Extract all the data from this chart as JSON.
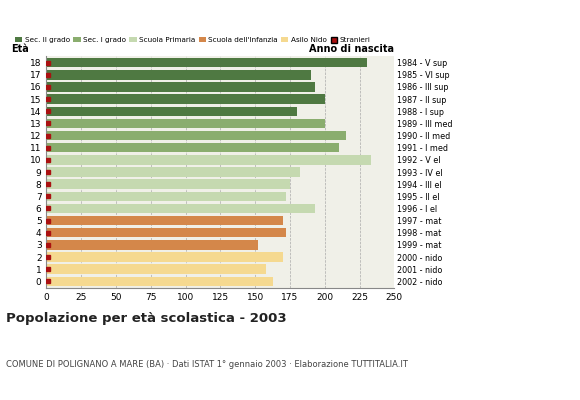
{
  "ages": [
    18,
    17,
    16,
    15,
    14,
    13,
    12,
    11,
    10,
    9,
    8,
    7,
    6,
    5,
    4,
    3,
    2,
    1,
    0
  ],
  "values": [
    230,
    190,
    193,
    200,
    180,
    200,
    215,
    210,
    233,
    182,
    175,
    172,
    193,
    170,
    172,
    152,
    170,
    158,
    163
  ],
  "stranieri": [
    4,
    4,
    4,
    4,
    4,
    4,
    6,
    5,
    5,
    6,
    5,
    5,
    5,
    5,
    5,
    5,
    5,
    5,
    8
  ],
  "bar_colors": [
    "#4f7942",
    "#4f7942",
    "#4f7942",
    "#4f7942",
    "#4f7942",
    "#8aad6e",
    "#8aad6e",
    "#8aad6e",
    "#c5d9b0",
    "#c5d9b0",
    "#c5d9b0",
    "#c5d9b0",
    "#c5d9b0",
    "#d4874a",
    "#d4874a",
    "#d4874a",
    "#f5d990",
    "#f5d990",
    "#f5d990"
  ],
  "anno_nascita": [
    "1984 - V sup",
    "1985 - VI sup",
    "1986 - III sup",
    "1987 - II sup",
    "1988 - I sup",
    "1989 - III med",
    "1990 - II med",
    "1991 - I med",
    "1992 - V el",
    "1993 - IV el",
    "1994 - III el",
    "1995 - II el",
    "1996 - I el",
    "1997 - mat",
    "1998 - mat",
    "1999 - mat",
    "2000 - nido",
    "2001 - nido",
    "2002 - nido"
  ],
  "legend_labels": [
    "Sec. II grado",
    "Sec. I grado",
    "Scuola Primaria",
    "Scuola dell'Infanzia",
    "Asilo Nido",
    "Stranieri"
  ],
  "legend_colors": [
    "#4f7942",
    "#8aad6e",
    "#c5d9b0",
    "#d4874a",
    "#f5d990",
    "#aa1111"
  ],
  "stranieri_color": "#aa1111",
  "title": "Popolazione per età scolastica - 2003",
  "subtitle": "COMUNE DI POLIGNANO A MARE (BA) · Dati ISTAT 1° gennaio 2003 · Elaborazione TUTTITALIA.IT",
  "xlabel_eta": "Età",
  "xlabel_anno": "Anno di nascita",
  "xlim": [
    0,
    250
  ],
  "xticks": [
    0,
    25,
    50,
    75,
    100,
    125,
    150,
    175,
    200,
    225,
    250
  ],
  "grid_color": "#aaaaaa",
  "bg_color": "#ffffff",
  "bar_bg_color": "#f0f0e8"
}
